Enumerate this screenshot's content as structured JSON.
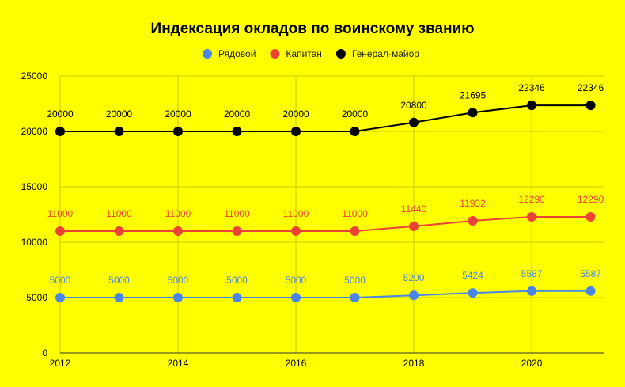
{
  "chart_data": {
    "type": "line",
    "title": "Индексация окладов по воинскому званию",
    "xlabel": "",
    "ylabel": "",
    "x": [
      2012,
      2013,
      2014,
      2015,
      2016,
      2017,
      2018,
      2019,
      2020,
      2021
    ],
    "xlim": [
      2012,
      2021.1
    ],
    "xticks": [
      2012,
      2014,
      2016,
      2018,
      2020
    ],
    "xtick_labels": [
      "2012",
      "2014",
      "2016",
      "2018",
      "2020"
    ],
    "ylim": [
      0,
      25000
    ],
    "yticks": [
      0,
      5000,
      10000,
      15000,
      20000,
      25000
    ],
    "ytick_labels": [
      "0",
      "5000",
      "10000",
      "15000",
      "20000",
      "25000"
    ],
    "grid": true,
    "legend_position": "top",
    "background": "#ffff00",
    "series": [
      {
        "name": "Рядовой",
        "color": "#4a86e8",
        "label_color": "#4a86e8",
        "values": [
          5000,
          5000,
          5000,
          5000,
          5000,
          5000,
          5200,
          5424,
          5587,
          5587
        ],
        "labels": [
          "5000",
          "5000",
          "5000",
          "5000",
          "5000",
          "5000",
          "5200",
          "5424",
          "5587",
          "5587"
        ]
      },
      {
        "name": "Капитан",
        "color": "#ea4335",
        "label_color": "#ea4335",
        "values": [
          11000,
          11000,
          11000,
          11000,
          11000,
          11000,
          11440,
          11932,
          12290,
          12290
        ],
        "labels": [
          "11000",
          "11000",
          "11000",
          "11000",
          "11000",
          "11000",
          "11440",
          "11932",
          "12290",
          "12290"
        ]
      },
      {
        "name": "Генерал-майор",
        "color": "#000000",
        "label_color": "#000000",
        "values": [
          20000,
          20000,
          20000,
          20000,
          20000,
          20000,
          20800,
          21695,
          22346,
          22346
        ],
        "labels": [
          "20000",
          "20000",
          "20000",
          "20000",
          "20000",
          "20000",
          "20800",
          "21695",
          "22346",
          "22346"
        ]
      }
    ]
  }
}
